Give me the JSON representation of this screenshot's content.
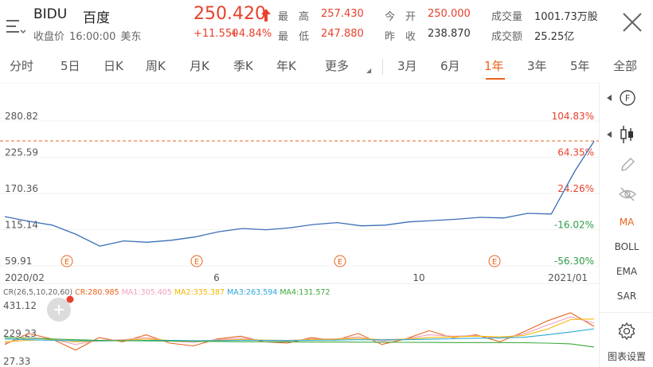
{
  "stock": {
    "symbol": "BIDU",
    "name": "百度",
    "status_label": "收盘价",
    "status_time": "16:00:00",
    "status_zone": "美东",
    "price": "250.420",
    "change": "+11.550",
    "change_pct": "+4.84%"
  },
  "quote": {
    "high_label": "最　高",
    "high": "257.430",
    "low_label": "最　低",
    "low": "247.880",
    "open_label": "今　开",
    "open": "250.000",
    "prev_label": "昨　收",
    "prev": "238.870",
    "volume_label": "成交量",
    "volume": "1001.73万股",
    "amount_label": "成交额",
    "amount": "25.25亿"
  },
  "tabs": {
    "items": [
      "分时",
      "5日",
      "日K",
      "周K",
      "月K",
      "季K",
      "年K",
      "更多",
      "3月",
      "6月",
      "1年",
      "3年",
      "5年",
      "全部"
    ],
    "active": "1年"
  },
  "right_panel": {
    "items": [
      "MA",
      "BOLL",
      "EMA",
      "SAR"
    ],
    "active": "MA",
    "settings_label": "图表设置",
    "icons": [
      "f-circle-icon",
      "candlestick-icon",
      "pencil-icon",
      "eye-off-icon",
      "gear-icon"
    ]
  },
  "chart_data": [
    {
      "type": "line",
      "x_labels": [
        "2020/02",
        "6",
        "10",
        "2021/01"
      ],
      "y_ticks": [
        "280.82",
        "225.59",
        "170.36",
        "115.14",
        "59.91"
      ],
      "pct_ticks": [
        "104.83%",
        "64.35%",
        "24.26%",
        "-16.02%",
        "-56.30%"
      ],
      "ylim": [
        59.91,
        280.82
      ],
      "reference_line": 250.42,
      "event_marker_label": "E",
      "x": [
        0,
        10,
        20,
        30,
        40,
        50,
        60,
        70,
        80,
        90,
        100,
        110,
        120,
        130,
        140,
        150,
        160,
        170,
        180,
        190,
        200,
        210,
        220,
        230,
        240,
        248
      ],
      "values": [
        135,
        128,
        122,
        108,
        90,
        98,
        96,
        99,
        104,
        112,
        117,
        115,
        118,
        123,
        126,
        121,
        122,
        127,
        129,
        131,
        134,
        133,
        140,
        139,
        205,
        250
      ]
    },
    {
      "type": "line",
      "title": "CR(26,5,10,20,60)",
      "y_ticks": [
        "431.12",
        "229.23",
        "27.33"
      ],
      "ylim": [
        27.33,
        431.12
      ],
      "series": [
        {
          "name": "CR",
          "label": "CR:280.985",
          "color": "#e8641c",
          "values": [
            150,
            230,
            190,
            110,
            200,
            170,
            220,
            160,
            140,
            190,
            210,
            170,
            160,
            200,
            180,
            230,
            150,
            190,
            250,
            200,
            220,
            170,
            240,
            320,
            380,
            281
          ]
        },
        {
          "name": "MA1",
          "label": "MA1:305.405",
          "color": "#f0a0c0",
          "values": [
            160,
            200,
            190,
            150,
            180,
            185,
            200,
            175,
            165,
            185,
            195,
            180,
            175,
            190,
            190,
            205,
            175,
            190,
            220,
            210,
            215,
            195,
            225,
            290,
            350,
            305
          ]
        },
        {
          "name": "MA2",
          "label": "MA2:335.387",
          "color": "#f5b800",
          "values": [
            170,
            180,
            185,
            170,
            175,
            180,
            190,
            180,
            175,
            180,
            185,
            182,
            180,
            185,
            188,
            195,
            185,
            188,
            200,
            205,
            210,
            205,
            215,
            260,
            330,
            335
          ]
        },
        {
          "name": "MA3",
          "label": "MA3:263.594",
          "color": "#2aa8d8",
          "values": [
            190,
            185,
            180,
            178,
            176,
            178,
            180,
            180,
            178,
            178,
            180,
            180,
            179,
            180,
            182,
            185,
            184,
            185,
            188,
            192,
            196,
            198,
            202,
            220,
            240,
            264
          ]
        },
        {
          "name": "MA4",
          "label": "MA4:131.572",
          "color": "#3caa3c",
          "values": [
            200,
            196,
            190,
            185,
            180,
            178,
            176,
            175,
            173,
            172,
            170,
            170,
            169,
            168,
            168,
            167,
            167,
            166,
            165,
            164,
            164,
            164,
            163,
            160,
            155,
            132
          ]
        }
      ]
    }
  ]
}
